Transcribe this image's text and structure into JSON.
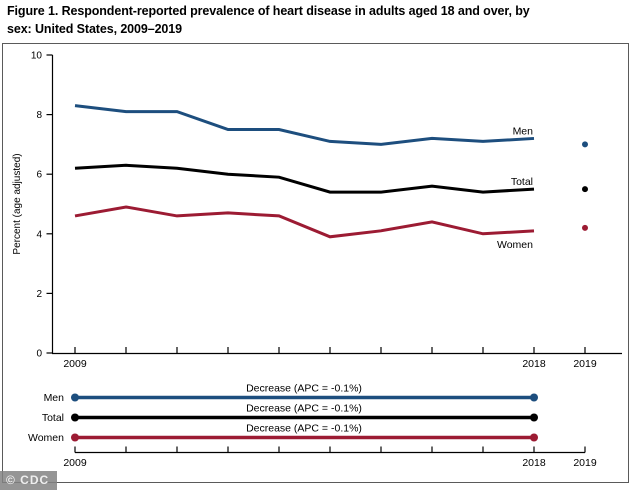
{
  "figure": {
    "title_line1": "Figure 1. Respondent-reported prevalence of heart disease in adults aged 18 and over, by",
    "title_line2": "sex: United States, 2009–2019",
    "watermark": "© CDC"
  },
  "chart_data": {
    "type": "line",
    "x": [
      2009,
      2010,
      2011,
      2012,
      2013,
      2014,
      2015,
      2016,
      2017,
      2018
    ],
    "series": [
      {
        "name": "Men",
        "color": "#1d4e7e",
        "values": [
          8.3,
          8.1,
          8.1,
          7.5,
          7.5,
          7.1,
          7.0,
          7.2,
          7.1,
          7.2
        ],
        "point_2019": 7.0,
        "label_side": "above"
      },
      {
        "name": "Total",
        "color": "#000000",
        "values": [
          6.2,
          6.3,
          6.2,
          6.0,
          5.9,
          5.4,
          5.4,
          5.6,
          5.4,
          5.5
        ],
        "point_2019": 5.5,
        "label_side": "above"
      },
      {
        "name": "Women",
        "color": "#9c1b33",
        "values": [
          4.6,
          4.9,
          4.6,
          4.7,
          4.6,
          3.9,
          4.1,
          4.4,
          4.0,
          4.1
        ],
        "point_2019": 4.2,
        "label_side": "below"
      }
    ],
    "ylabel": "Percent (age adjusted)",
    "ylim": [
      0,
      10
    ],
    "yticks": [
      0,
      2,
      4,
      6,
      8,
      10
    ],
    "xtick_years": [
      2009,
      2010,
      2011,
      2012,
      2013,
      2014,
      2015,
      2016,
      2017,
      2018,
      2019
    ],
    "labeled_years": [
      "2009",
      "2018",
      "2019"
    ],
    "legend_position": "line-end-labels",
    "grid": false,
    "trend_panel": {
      "rows": [
        {
          "label": "Men",
          "annotation": "Decrease (APC = -0.1%)"
        },
        {
          "label": "Total",
          "annotation": "Decrease (APC = -0.1%)"
        },
        {
          "label": "Women",
          "annotation": "Decrease (APC = -0.1%)"
        }
      ]
    }
  }
}
